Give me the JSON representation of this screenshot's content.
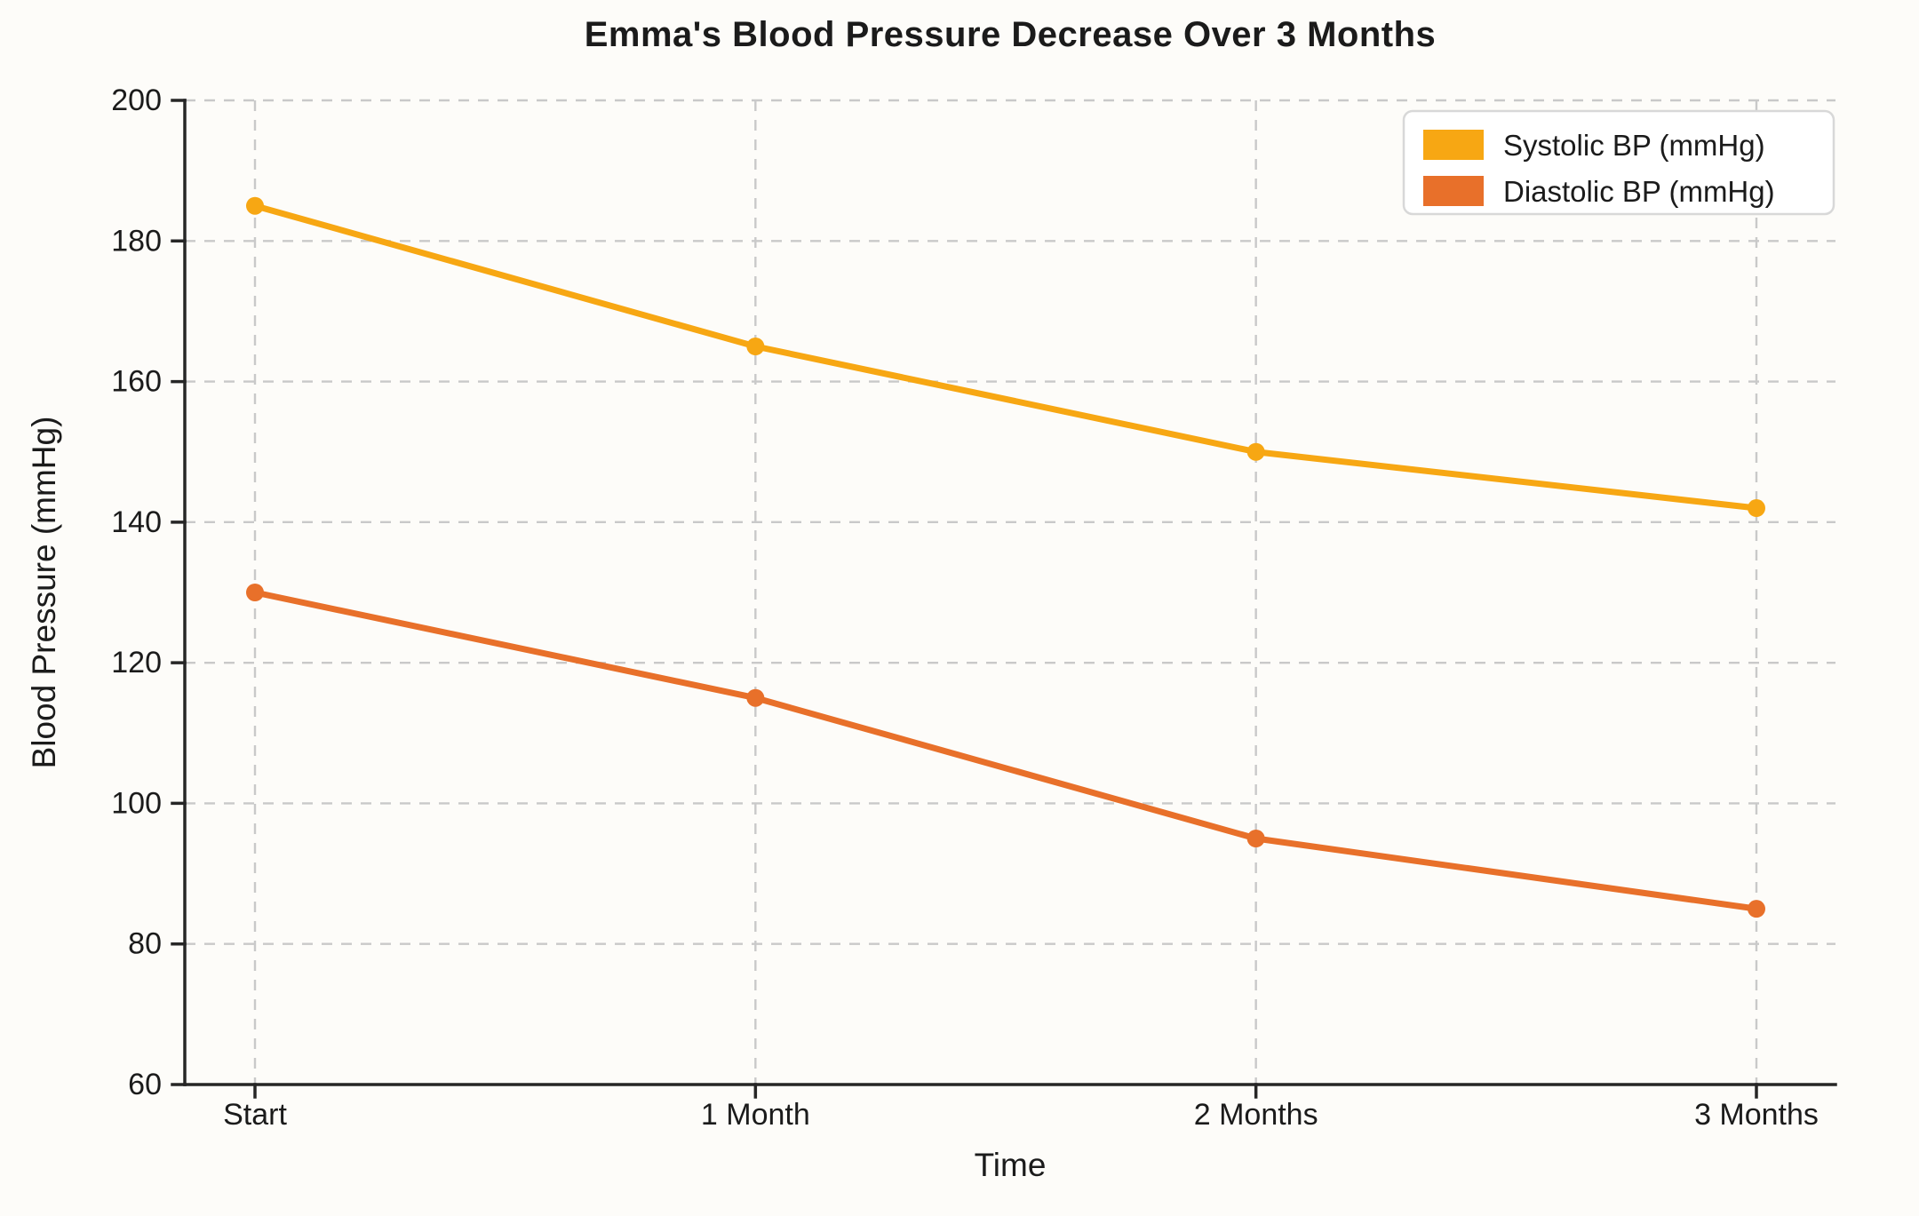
{
  "chart_data": {
    "type": "line",
    "title": "Emma's Blood Pressure Decrease Over 3 Months",
    "xlabel": "Time",
    "ylabel": "Blood Pressure (mmHg)",
    "categories": [
      "Start",
      "1 Month",
      "2 Months",
      "3 Months"
    ],
    "series": [
      {
        "name": "Systolic BP (mmHg)",
        "color": "#F7A713",
        "marker": "circle",
        "values": [
          185,
          165,
          150,
          142
        ]
      },
      {
        "name": "Diastolic BP (mmHg)",
        "color": "#E8702A",
        "marker": "circle",
        "values": [
          130,
          115,
          95,
          85
        ]
      }
    ],
    "ylim": [
      60,
      200
    ],
    "ytick_step": 20,
    "yticks": [
      60,
      80,
      100,
      120,
      140,
      160,
      180,
      200
    ],
    "grid": true,
    "grid_style": "dashed",
    "legend_position": "top-right"
  },
  "style": {
    "background": "#FDFCF9",
    "grid_color": "#C9C9C9",
    "axis_color": "#262626",
    "text_color": "#1B1B1B",
    "legend_background": "#FFFFFF",
    "legend_border": "#D8D8D8"
  }
}
